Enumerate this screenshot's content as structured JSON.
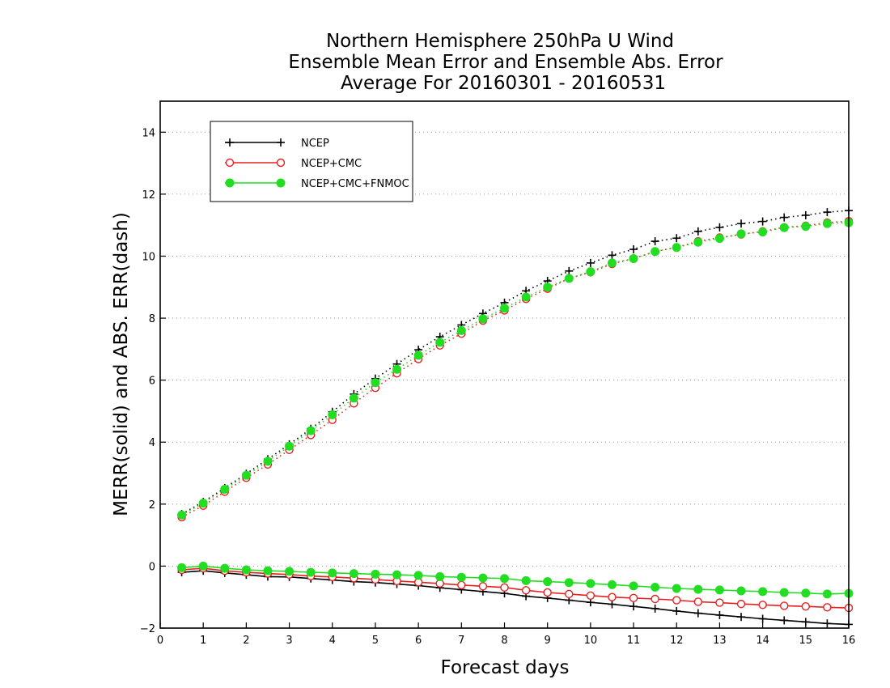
{
  "chart_data": {
    "type": "line",
    "title_lines": [
      "Northern Hemisphere 250hPa U Wind",
      "Ensemble Mean Error and Ensemble Abs. Error",
      "Average For 20160301 - 20160531"
    ],
    "xlabel": "Forecast days",
    "ylabel": "MERR(solid) and ABS. ERR(dash)",
    "xlim": [
      0,
      16
    ],
    "ylim": [
      -2,
      15
    ],
    "xticks": [
      0,
      1,
      2,
      3,
      4,
      5,
      6,
      7,
      8,
      9,
      10,
      11,
      12,
      13,
      14,
      15,
      16
    ],
    "yticks": [
      -2,
      0,
      2,
      4,
      6,
      8,
      10,
      12,
      14
    ],
    "ytick_labels": [
      "−2",
      "0",
      "2",
      "4",
      "6",
      "8",
      "10",
      "12",
      "14"
    ],
    "grid": "horizontal-dotted",
    "legend_position": "top-left",
    "x": [
      0.5,
      1,
      1.5,
      2,
      2.5,
      3,
      3.5,
      4,
      4.5,
      5,
      5.5,
      6,
      6.5,
      7,
      7.5,
      8,
      8.5,
      9,
      9.5,
      10,
      10.5,
      11,
      11.5,
      12,
      12.5,
      13,
      13.5,
      14,
      14.5,
      15,
      15.5,
      16
    ],
    "series": [
      {
        "name": "NCEP",
        "color": "#000000",
        "marker": "plus",
        "merr": [
          -0.2,
          -0.15,
          -0.22,
          -0.28,
          -0.34,
          -0.35,
          -0.4,
          -0.45,
          -0.5,
          -0.53,
          -0.58,
          -0.63,
          -0.7,
          -0.76,
          -0.82,
          -0.88,
          -0.97,
          -1.03,
          -1.1,
          -1.17,
          -1.23,
          -1.3,
          -1.37,
          -1.45,
          -1.52,
          -1.58,
          -1.64,
          -1.7,
          -1.75,
          -1.8,
          -1.85,
          -1.88
        ],
        "abs_err": [
          1.68,
          2.07,
          2.52,
          2.98,
          3.45,
          3.93,
          4.43,
          4.98,
          5.55,
          6.05,
          6.52,
          6.98,
          7.4,
          7.78,
          8.15,
          8.5,
          8.88,
          9.2,
          9.52,
          9.78,
          10.03,
          10.22,
          10.48,
          10.58,
          10.8,
          10.93,
          11.05,
          11.12,
          11.25,
          11.32,
          11.42,
          11.47
        ]
      },
      {
        "name": "NCEP+CMC",
        "color": "#e62020",
        "marker": "open-circle",
        "merr": [
          -0.12,
          -0.07,
          -0.15,
          -0.2,
          -0.24,
          -0.27,
          -0.32,
          -0.35,
          -0.39,
          -0.43,
          -0.48,
          -0.52,
          -0.56,
          -0.61,
          -0.65,
          -0.69,
          -0.78,
          -0.85,
          -0.9,
          -0.95,
          -1.0,
          -1.03,
          -1.06,
          -1.1,
          -1.15,
          -1.18,
          -1.22,
          -1.25,
          -1.28,
          -1.3,
          -1.33,
          -1.35
        ],
        "abs_err": [
          1.58,
          1.95,
          2.4,
          2.85,
          3.28,
          3.75,
          4.23,
          4.72,
          5.25,
          5.75,
          6.22,
          6.68,
          7.12,
          7.5,
          7.92,
          8.25,
          8.62,
          8.95,
          9.28,
          9.48,
          9.75,
          9.92,
          10.15,
          10.28,
          10.48,
          10.6,
          10.7,
          10.8,
          10.93,
          10.98,
          11.08,
          11.13
        ]
      },
      {
        "name": "NCEP+CMC+FNMOC",
        "color": "#22dd22",
        "marker": "filled-circle",
        "merr": [
          -0.05,
          0.0,
          -0.07,
          -0.12,
          -0.15,
          -0.17,
          -0.2,
          -0.22,
          -0.24,
          -0.26,
          -0.28,
          -0.3,
          -0.34,
          -0.36,
          -0.38,
          -0.4,
          -0.47,
          -0.5,
          -0.53,
          -0.56,
          -0.6,
          -0.64,
          -0.68,
          -0.72,
          -0.75,
          -0.77,
          -0.8,
          -0.82,
          -0.85,
          -0.87,
          -0.9,
          -0.88
        ],
        "abs_err": [
          1.65,
          2.03,
          2.48,
          2.93,
          3.38,
          3.87,
          4.37,
          4.88,
          5.42,
          5.92,
          6.35,
          6.8,
          7.22,
          7.6,
          7.98,
          8.32,
          8.68,
          9.0,
          9.28,
          9.5,
          9.78,
          9.92,
          10.15,
          10.28,
          10.45,
          10.57,
          10.72,
          10.78,
          10.92,
          10.96,
          11.05,
          11.08
        ]
      }
    ]
  }
}
